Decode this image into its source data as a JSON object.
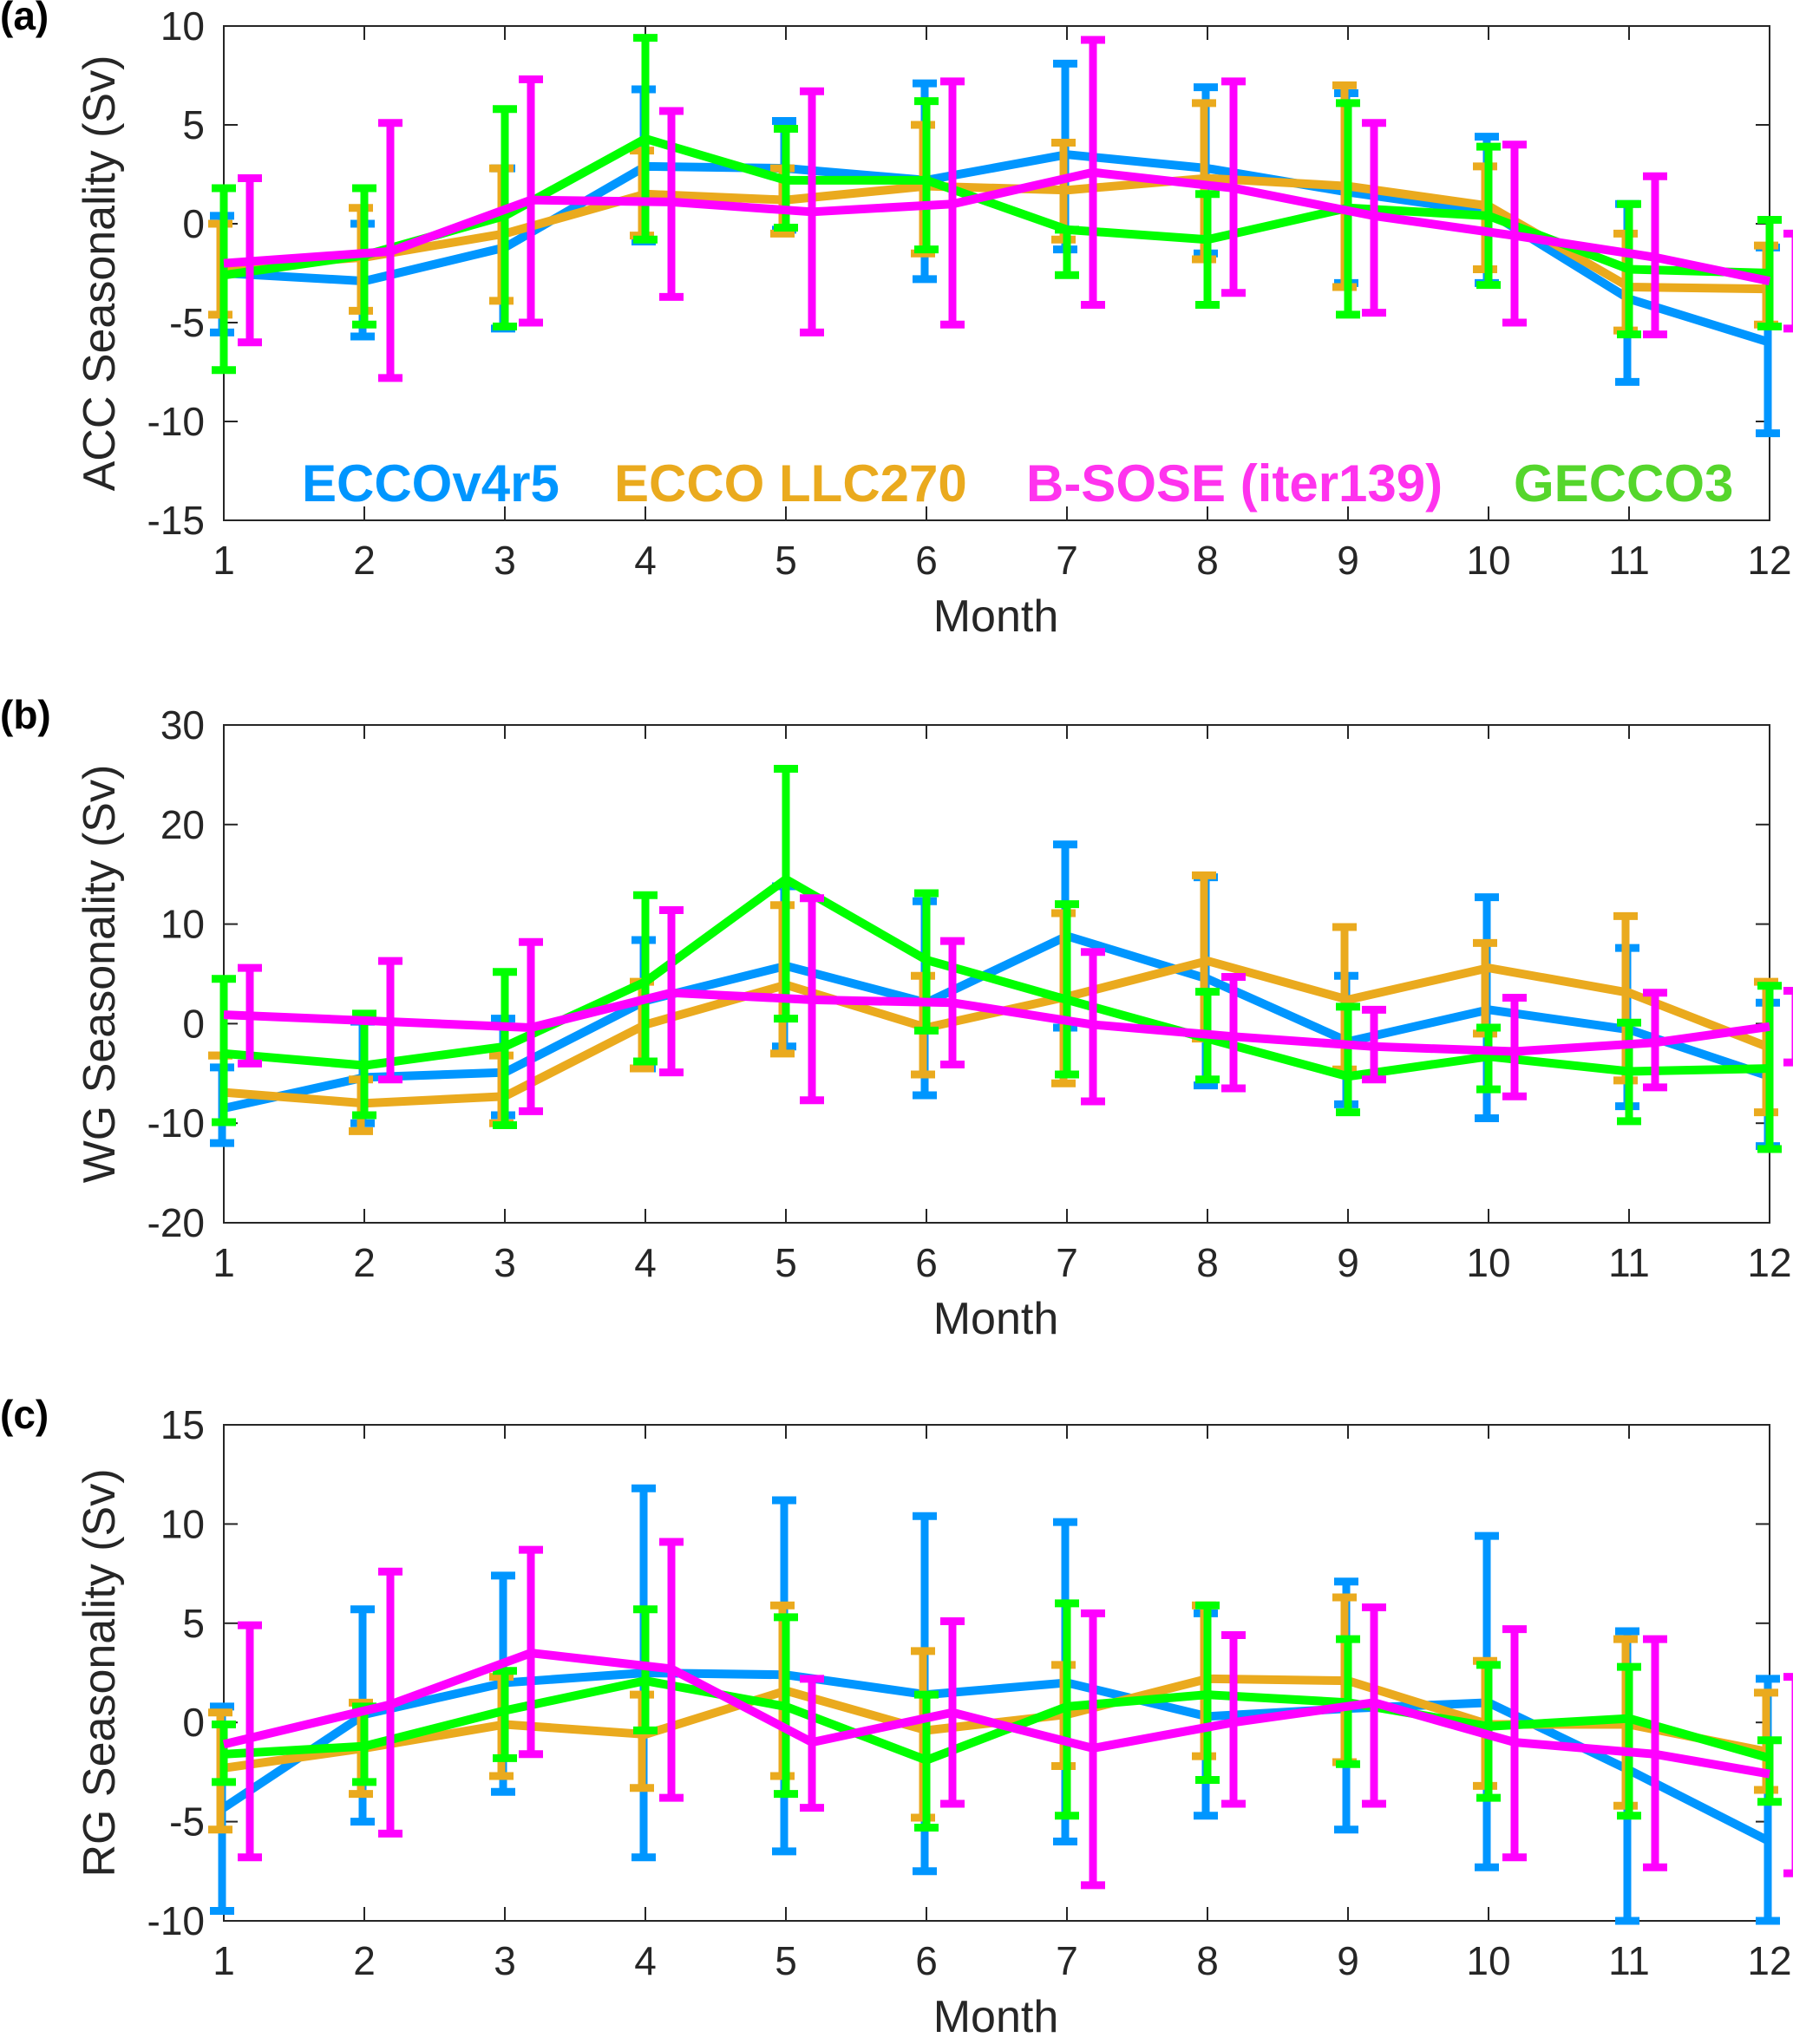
{
  "chart_data": [
    {
      "type": "line",
      "panel_label": "(a)",
      "title": "",
      "xlabel": "Month",
      "ylabel": "ACC Seasonality (Sv)",
      "xlim": [
        1,
        12
      ],
      "ylim": [
        -15,
        10
      ],
      "xticks": [
        1,
        2,
        3,
        4,
        5,
        6,
        7,
        8,
        9,
        10,
        11,
        12
      ],
      "yticks": [
        -15,
        -10,
        -5,
        0,
        5,
        10
      ],
      "grid": false,
      "legend": {
        "placement": "bottom",
        "entries": [
          "ECCOv4r5",
          "ECCO LLC270",
          "B-SOSE (iter139)",
          "GECCO3"
        ]
      },
      "x": [
        1,
        2,
        3,
        4,
        5,
        6,
        7,
        8,
        9,
        10,
        11,
        12
      ],
      "series": [
        {
          "name": "ECCOv4r5",
          "color": "#0096FF",
          "values": [
            -2.5,
            -2.9,
            -1.2,
            2.9,
            2.8,
            2.2,
            3.5,
            2.8,
            1.6,
            0.6,
            -3.8,
            -6.0
          ],
          "err_low": [
            -5.5,
            -5.7,
            -5.3,
            -0.9,
            -0.3,
            -2.8,
            -1.3,
            -1.5,
            -3.0,
            -3.0,
            -8.0,
            -10.6
          ],
          "err_high": [
            0.4,
            0.0,
            2.8,
            6.8,
            5.2,
            7.1,
            8.1,
            6.9,
            6.6,
            4.4,
            1.0,
            -1.2
          ]
        },
        {
          "name": "ECCO LLC270",
          "color": "#EAAA1E",
          "values": [
            -2.2,
            -1.7,
            -0.5,
            1.5,
            1.2,
            1.9,
            1.7,
            2.3,
            1.9,
            0.9,
            -3.2,
            -3.3
          ],
          "err_low": [
            -4.6,
            -4.4,
            -3.9,
            -0.6,
            -0.5,
            -1.5,
            -0.8,
            -1.8,
            -3.2,
            -2.3,
            -5.4,
            -5.1
          ],
          "err_high": [
            0.0,
            0.8,
            2.8,
            3.7,
            2.8,
            5.0,
            4.1,
            6.1,
            7.0,
            2.9,
            -0.5,
            -1.1
          ]
        },
        {
          "name": "B-SOSE (iter139)",
          "color": "#FF00FF",
          "values": [
            -2.0,
            -1.4,
            1.2,
            1.1,
            0.6,
            1.0,
            2.6,
            1.8,
            0.4,
            -0.6,
            -1.7,
            -2.9
          ],
          "err_low": [
            -6.0,
            -7.8,
            -5.0,
            -3.7,
            -5.5,
            -5.1,
            -4.1,
            -3.5,
            -4.5,
            -5.0,
            -5.6,
            -5.3
          ],
          "err_high": [
            2.3,
            5.1,
            7.3,
            5.7,
            6.7,
            7.2,
            9.3,
            7.2,
            5.1,
            4.0,
            2.4,
            -0.5
          ]
        },
        {
          "name": "GECCO3",
          "color": "#00FF00",
          "values": [
            -2.6,
            -1.6,
            0.4,
            4.3,
            2.2,
            2.2,
            -0.3,
            -0.8,
            0.8,
            0.4,
            -2.3,
            -2.5
          ],
          "err_low": [
            -7.4,
            -5.1,
            -5.2,
            -0.8,
            -0.2,
            -1.3,
            -2.6,
            -4.1,
            -4.6,
            -3.1,
            -5.6,
            -5.2
          ],
          "err_high": [
            1.8,
            1.8,
            5.8,
            9.4,
            4.8,
            6.2,
            -0.3,
            1.5,
            6.1,
            3.9,
            1.0,
            0.2
          ]
        }
      ]
    },
    {
      "type": "line",
      "panel_label": "(b)",
      "title": "",
      "xlabel": "Month",
      "ylabel": "WG Seasonality (Sv)",
      "xlim": [
        1,
        12
      ],
      "ylim": [
        -20,
        30
      ],
      "xticks": [
        1,
        2,
        3,
        4,
        5,
        6,
        7,
        8,
        9,
        10,
        11,
        12
      ],
      "yticks": [
        -20,
        -10,
        0,
        10,
        20,
        30
      ],
      "grid": false,
      "x": [
        1,
        2,
        3,
        4,
        5,
        6,
        7,
        8,
        9,
        10,
        11,
        12
      ],
      "series": [
        {
          "name": "ECCOv4r5",
          "color": "#0096FF",
          "values": [
            -8.5,
            -5.4,
            -4.9,
            2.3,
            5.8,
            2.1,
            8.8,
            4.5,
            -1.8,
            1.4,
            -0.6,
            -5.3
          ],
          "err_low": [
            -12.0,
            -10.0,
            -9.2,
            -4.5,
            -2.3,
            -7.2,
            -0.4,
            -6.2,
            -8.1,
            -9.5,
            -8.3,
            -12.3
          ],
          "err_high": [
            -4.4,
            0.2,
            0.5,
            8.4,
            13.8,
            12.3,
            18.0,
            14.7,
            4.8,
            12.7,
            7.6,
            2.1
          ]
        },
        {
          "name": "ECCO LLC270",
          "color": "#EAAA1E",
          "values": [
            -6.9,
            -8.0,
            -7.3,
            -0.1,
            3.9,
            -0.4,
            2.7,
            6.3,
            2.4,
            5.6,
            3.1,
            -2.4
          ],
          "err_low": [
            -3.2,
            -10.8,
            -10.0,
            -4.5,
            -3.0,
            -5.1,
            -6.0,
            -1.5,
            -4.6,
            -1.0,
            -5.7,
            -8.9
          ],
          "err_high": [
            -3.2,
            -5.6,
            -3.2,
            4.2,
            11.9,
            4.8,
            11.1,
            14.9,
            9.7,
            8.1,
            10.8,
            4.2
          ]
        },
        {
          "name": "B-SOSE (iter139)",
          "color": "#FF00FF",
          "values": [
            0.9,
            0.2,
            -0.4,
            3.1,
            2.4,
            2.1,
            -0.1,
            -1.3,
            -2.3,
            -2.8,
            -1.9,
            -0.3
          ],
          "err_low": [
            -4.0,
            -5.6,
            -8.8,
            -4.9,
            -7.7,
            -4.1,
            -7.8,
            -6.5,
            -5.6,
            -7.3,
            -6.4,
            -3.9
          ],
          "err_high": [
            5.6,
            6.3,
            8.2,
            11.4,
            12.6,
            8.3,
            7.2,
            4.7,
            1.4,
            2.6,
            3.1,
            3.3
          ]
        },
        {
          "name": "GECCO3",
          "color": "#00FF00",
          "values": [
            -3.0,
            -4.2,
            -2.3,
            4.2,
            14.5,
            6.4,
            2.4,
            -1.5,
            -5.3,
            -3.3,
            -4.8,
            -4.5
          ],
          "err_low": [
            -9.9,
            -9.2,
            -10.2,
            -3.8,
            0.5,
            -0.7,
            -5.1,
            -5.6,
            -8.9,
            -6.6,
            -9.8,
            -12.6
          ],
          "err_high": [
            4.5,
            1.0,
            5.2,
            12.9,
            25.6,
            13.1,
            12.0,
            3.2,
            1.7,
            -0.4,
            0.1,
            3.8
          ]
        }
      ]
    },
    {
      "type": "line",
      "panel_label": "(c)",
      "title": "",
      "xlabel": "Month",
      "ylabel": "RG Seasonality (Sv)",
      "xlim": [
        1,
        12
      ],
      "ylim": [
        -10,
        15
      ],
      "xticks": [
        1,
        2,
        3,
        4,
        5,
        6,
        7,
        8,
        9,
        10,
        11,
        12
      ],
      "yticks": [
        -10,
        -5,
        0,
        5,
        10,
        15
      ],
      "grid": false,
      "x": [
        1,
        2,
        3,
        4,
        5,
        6,
        7,
        8,
        9,
        10,
        11,
        12
      ],
      "series": [
        {
          "name": "ECCOv4r5",
          "color": "#0096FF",
          "values": [
            -4.3,
            0.4,
            2.0,
            2.5,
            2.4,
            1.4,
            2.0,
            0.3,
            0.7,
            1.0,
            -2.4,
            -6.0
          ],
          "err_low": [
            -9.5,
            -5.0,
            -3.5,
            -6.8,
            -6.5,
            -7.5,
            -6.0,
            -4.7,
            -5.4,
            -7.3,
            -10.0,
            -10.0
          ],
          "err_high": [
            0.8,
            5.7,
            7.4,
            11.8,
            11.2,
            10.4,
            10.1,
            5.5,
            7.1,
            9.4,
            4.6,
            2.2
          ]
        },
        {
          "name": "ECCO LLC270",
          "color": "#EAAA1E",
          "values": [
            -2.3,
            -1.3,
            -0.1,
            -0.6,
            1.6,
            -0.4,
            0.4,
            2.2,
            2.1,
            -0.1,
            -0.1,
            -1.5
          ],
          "err_low": [
            -5.4,
            -3.6,
            -2.7,
            -3.3,
            -2.7,
            -4.8,
            -2.2,
            -1.7,
            -2.0,
            -3.2,
            -4.2,
            -3.4
          ],
          "err_high": [
            0.5,
            1.0,
            2.3,
            1.4,
            5.9,
            3.6,
            2.9,
            5.9,
            6.3,
            3.1,
            4.2,
            1.5
          ]
        },
        {
          "name": "B-SOSE (iter139)",
          "color": "#FF00FF",
          "values": [
            -1.1,
            0.9,
            3.5,
            2.7,
            -1.0,
            0.5,
            -1.3,
            0.0,
            1.0,
            -1.0,
            -1.6,
            -2.6
          ],
          "err_low": [
            -6.8,
            -5.6,
            -1.6,
            -3.8,
            -4.3,
            -4.1,
            -8.2,
            -4.1,
            -4.1,
            -6.8,
            -7.3,
            -7.6
          ],
          "err_high": [
            4.9,
            7.6,
            8.7,
            9.1,
            2.2,
            5.1,
            5.5,
            4.4,
            5.8,
            4.7,
            4.2,
            2.3
          ]
        },
        {
          "name": "GECCO3",
          "color": "#00FF00",
          "values": [
            -1.6,
            -1.2,
            0.6,
            2.1,
            0.8,
            -1.9,
            0.8,
            1.4,
            1.0,
            -0.2,
            0.2,
            -1.8
          ],
          "err_low": [
            -3.0,
            -3.0,
            -1.8,
            -0.4,
            -3.6,
            -5.3,
            -4.7,
            -2.9,
            -2.1,
            -3.8,
            -4.7,
            -4.0
          ],
          "err_high": [
            -0.1,
            0.8,
            2.6,
            5.7,
            5.3,
            1.4,
            6.0,
            5.9,
            4.2,
            2.9,
            2.8,
            -0.9
          ]
        }
      ]
    }
  ],
  "legend_labels": {
    "eccov4r5": "ECCOv4r5",
    "llc270": "ECCO LLC270",
    "bsose": "B-SOSE (iter139)",
    "gecco3": "GECCO3"
  },
  "legend_colors": {
    "eccov4r5": "#0096FF",
    "llc270": "#EAAA1E",
    "bsose": "#FF33EE",
    "gecco3": "#55D62C"
  }
}
